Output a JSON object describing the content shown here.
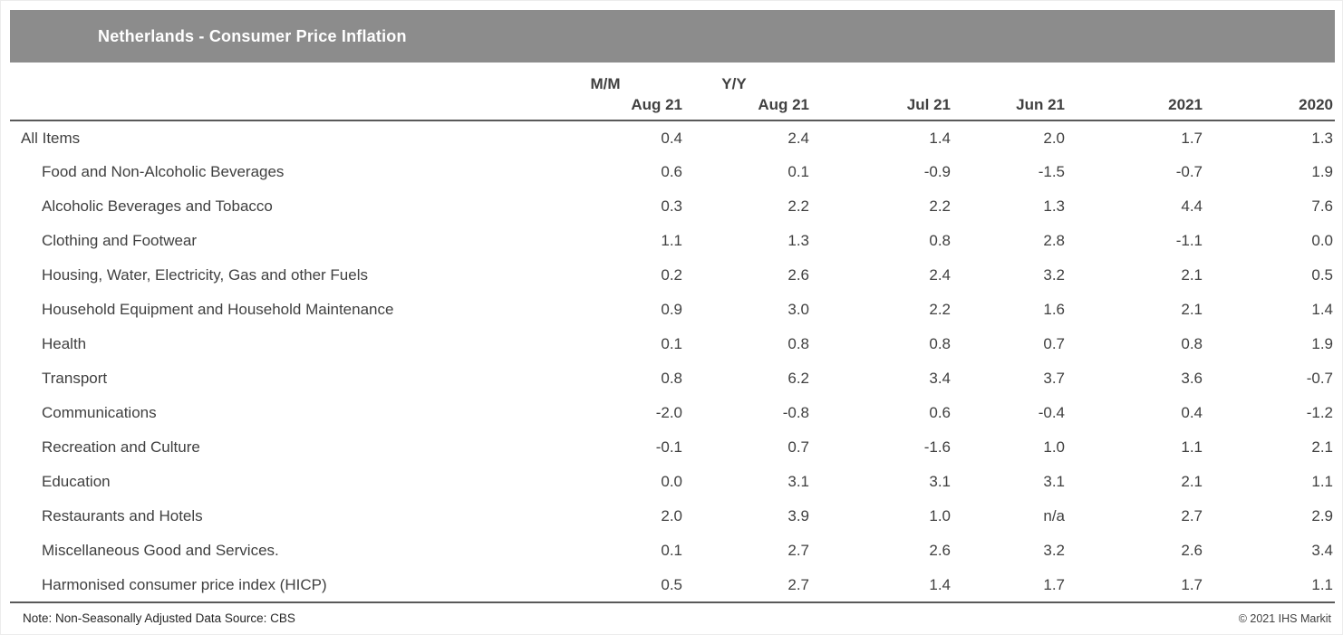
{
  "header": {
    "title": "Netherlands - Consumer Price Inflation",
    "bar_color": "#8c8c8c"
  },
  "chart_data": {
    "type": "table",
    "title": "Netherlands - Consumer Price Inflation",
    "group_headers": [
      "M/M",
      "Y/Y"
    ],
    "columns": [
      "Aug 21",
      "Aug 21",
      "Jul 21",
      "Jun 21",
      "2021",
      "2020"
    ],
    "rows": [
      {
        "label": "All Items",
        "values": [
          "0.4",
          "2.4",
          "1.4",
          "2.0",
          "1.7",
          "1.3"
        ]
      },
      {
        "label": "Food and Non-Alcoholic Beverages",
        "values": [
          "0.6",
          "0.1",
          "-0.9",
          "-1.5",
          "-0.7",
          "1.9"
        ]
      },
      {
        "label": "Alcoholic Beverages and Tobacco",
        "values": [
          "0.3",
          "2.2",
          "2.2",
          "1.3",
          "4.4",
          "7.6"
        ]
      },
      {
        "label": "Clothing and Footwear",
        "values": [
          "1.1",
          "1.3",
          "0.8",
          "2.8",
          "-1.1",
          "0.0"
        ]
      },
      {
        "label": "Housing, Water, Electricity, Gas and other Fuels",
        "values": [
          "0.2",
          "2.6",
          "2.4",
          "3.2",
          "2.1",
          "0.5"
        ]
      },
      {
        "label": "Household Equipment and Household Maintenance",
        "values": [
          "0.9",
          "3.0",
          "2.2",
          "1.6",
          "2.1",
          "1.4"
        ]
      },
      {
        "label": "Health",
        "values": [
          "0.1",
          "0.8",
          "0.8",
          "0.7",
          "0.8",
          "1.9"
        ]
      },
      {
        "label": "Transport",
        "values": [
          "0.8",
          "6.2",
          "3.4",
          "3.7",
          "3.6",
          "-0.7"
        ]
      },
      {
        "label": "Communications",
        "values": [
          "-2.0",
          "-0.8",
          "0.6",
          "-0.4",
          "0.4",
          "-1.2"
        ]
      },
      {
        "label": "Recreation and Culture",
        "values": [
          "-0.1",
          "0.7",
          "-1.6",
          "1.0",
          "1.1",
          "2.1"
        ]
      },
      {
        "label": "Education",
        "values": [
          "0.0",
          "3.1",
          "3.1",
          "3.1",
          "2.1",
          "1.1"
        ]
      },
      {
        "label": "Restaurants and Hotels",
        "values": [
          "2.0",
          "3.9",
          "1.0",
          "n/a",
          "2.7",
          "2.9"
        ]
      },
      {
        "label": "Miscellaneous Good and Services.",
        "values": [
          "0.1",
          "2.7",
          "2.6",
          "3.2",
          "2.6",
          "3.4"
        ]
      },
      {
        "label": "Harmonised consumer price index (HICP)",
        "values": [
          "0.5",
          "2.7",
          "1.4",
          "1.7",
          "1.7",
          "1.1"
        ]
      }
    ]
  },
  "footer": {
    "note": "Note: Non-Seasonally Adjusted Data Source: CBS",
    "copyright": "© 2021 IHS Markit"
  }
}
